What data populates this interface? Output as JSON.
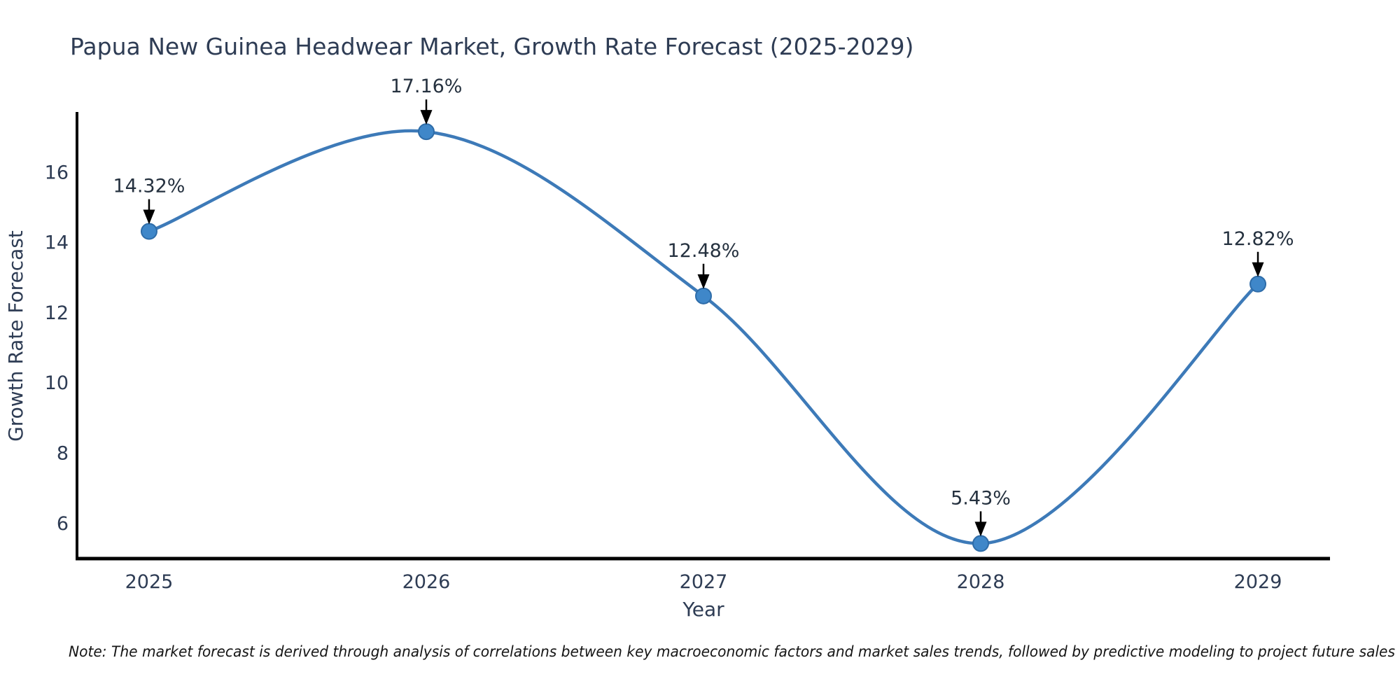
{
  "chart_data": {
    "type": "line",
    "title": "Papua New Guinea Headwear Market, Growth Rate Forecast (2025-2029)",
    "xlabel": "Year",
    "ylabel": "Growth Rate Forecast",
    "x": [
      2025,
      2026,
      2027,
      2028,
      2029
    ],
    "series": [
      {
        "name": "Growth Rate Forecast",
        "values": [
          14.32,
          17.16,
          12.48,
          5.43,
          12.82
        ]
      }
    ],
    "point_labels": [
      "14.32%",
      "17.16%",
      "12.48%",
      "5.43%",
      "12.82%"
    ],
    "yticks": [
      6,
      8,
      10,
      12,
      14,
      16
    ],
    "xlim": [
      2024.74,
      2029.26
    ],
    "ylim": [
      4.96,
      17.72
    ],
    "grid": false,
    "legend_position": "none",
    "colors": {
      "line": "#3d7ab8",
      "marker_fill": "#3f87c9",
      "marker_edge": "#2e6ca8",
      "axis": "#000000",
      "text": "#2e3c54",
      "annotation_arrow": "#000000"
    }
  },
  "note": {
    "text": "Note: The market forecast is derived through analysis of correlations between key macroeconomic factors and market sales trends, followed by predictive modeling to project future sales"
  }
}
